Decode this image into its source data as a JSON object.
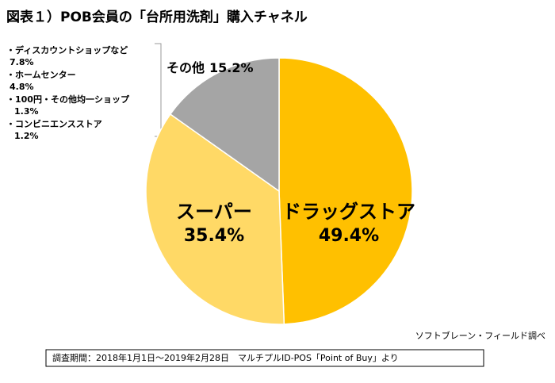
{
  "chart_data": {
    "type": "pie",
    "title": "図表１）POB会員の「台所用洗剤」購入チャネル",
    "categories": [
      "ドラッグストア",
      "スーパー",
      "その他"
    ],
    "values": [
      49.4,
      35.4,
      15.2
    ],
    "value_labels": [
      "49.4%",
      "35.4%",
      "15.2%"
    ],
    "colors": [
      "#FFC000",
      "#FFD966",
      "#A5A5A5"
    ],
    "breakdown": [
      {
        "name": "・ディスカウントショップなど",
        "value": 7.8,
        "label": "7.8%"
      },
      {
        "name": "・ホームセンター",
        "value": 4.8,
        "label": "4.8%"
      },
      {
        "name": "・100円・その他均一ショップ",
        "value": 1.3,
        "label": "1.3%"
      },
      {
        "name": "・コンビニエンスストア",
        "value": 1.2,
        "label": "1.2%"
      }
    ],
    "source": "ソフトブレーン・フィールド調べ",
    "note": "調査期間：2018年1月1日～2019年2月28日　マルチプルID-POS「Point of Buy」より"
  }
}
